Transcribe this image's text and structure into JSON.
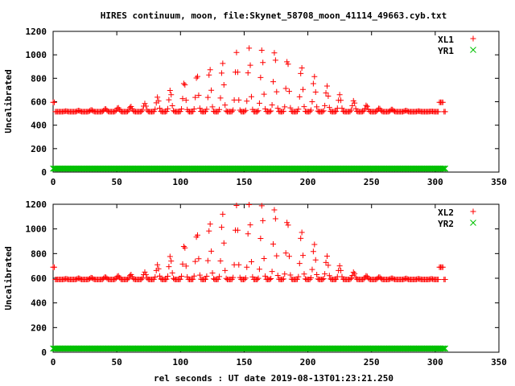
{
  "figure": {
    "title": "HIRES continuum, moon, file:Skynet_58708_moon_41114_49663.cyb.txt",
    "xlabel": "rel seconds : UT date 2019-08-13T01:23:21.250"
  },
  "chart_data": [
    {
      "type": "scatter",
      "panel": "top",
      "ylabel": "Uncalibrated",
      "xlim": [
        0,
        350
      ],
      "ylim": [
        0,
        1200
      ],
      "x_ticks": [
        "0",
        "50",
        "100",
        "150",
        "200",
        "250",
        "300",
        "350"
      ],
      "y_ticks": [
        "0",
        "200",
        "400",
        "600",
        "800",
        "1000",
        "1200"
      ],
      "legend_position": "top-right",
      "grid": false,
      "series": [
        {
          "name": "XL1",
          "marker": "plus",
          "color": "#ff0000",
          "x_range": [
            0,
            308
          ],
          "baseline": 515,
          "endpoint_level": 595,
          "peak_centers": [
            10,
            20,
            30,
            41,
            51,
            61,
            72,
            82,
            92,
            103,
            113,
            123,
            133,
            144,
            154,
            164,
            174,
            184,
            195,
            205,
            215,
            225,
            236,
            246,
            256,
            266,
            277,
            287,
            297
          ],
          "peak_values": [
            520,
            525,
            530,
            540,
            550,
            560,
            585,
            640,
            700,
            775,
            840,
            890,
            935,
            1020,
            1060,
            1050,
            1040,
            975,
            905,
            820,
            735,
            660,
            610,
            570,
            545,
            535,
            525,
            520,
            518
          ]
        },
        {
          "name": "YR1",
          "marker": "cross",
          "color": "#00c000",
          "x_range": [
            0,
            308
          ],
          "value": 30
        }
      ]
    },
    {
      "type": "scatter",
      "panel": "bottom",
      "ylabel": "Uncalibrated",
      "xlim": [
        0,
        350
      ],
      "ylim": [
        0,
        1200
      ],
      "x_ticks": [
        "0",
        "50",
        "100",
        "150",
        "200",
        "250",
        "300",
        "350"
      ],
      "y_ticks": [
        "0",
        "200",
        "400",
        "600",
        "800",
        "1000",
        "1200"
      ],
      "legend_position": "top-right",
      "grid": false,
      "series": [
        {
          "name": "XL2",
          "marker": "plus",
          "color": "#ff0000",
          "x_range": [
            0,
            308
          ],
          "baseline": 590,
          "endpoint_level": 690,
          "peak_centers": [
            10,
            20,
            30,
            41,
            51,
            61,
            72,
            82,
            92,
            103,
            113,
            123,
            133,
            144,
            154,
            164,
            174,
            184,
            195,
            205,
            215,
            225,
            236,
            246,
            256,
            266,
            277,
            287,
            297
          ],
          "peak_values": [
            595,
            600,
            605,
            610,
            620,
            630,
            650,
            710,
            780,
            880,
            980,
            1060,
            1130,
            1190,
            1200,
            1200,
            1180,
            1090,
            990,
            880,
            780,
            700,
            650,
            620,
            610,
            600,
            598,
            595,
            595
          ]
        },
        {
          "name": "YR2",
          "marker": "cross",
          "color": "#00c000",
          "x_range": [
            0,
            308
          ],
          "value": 30
        }
      ]
    }
  ]
}
